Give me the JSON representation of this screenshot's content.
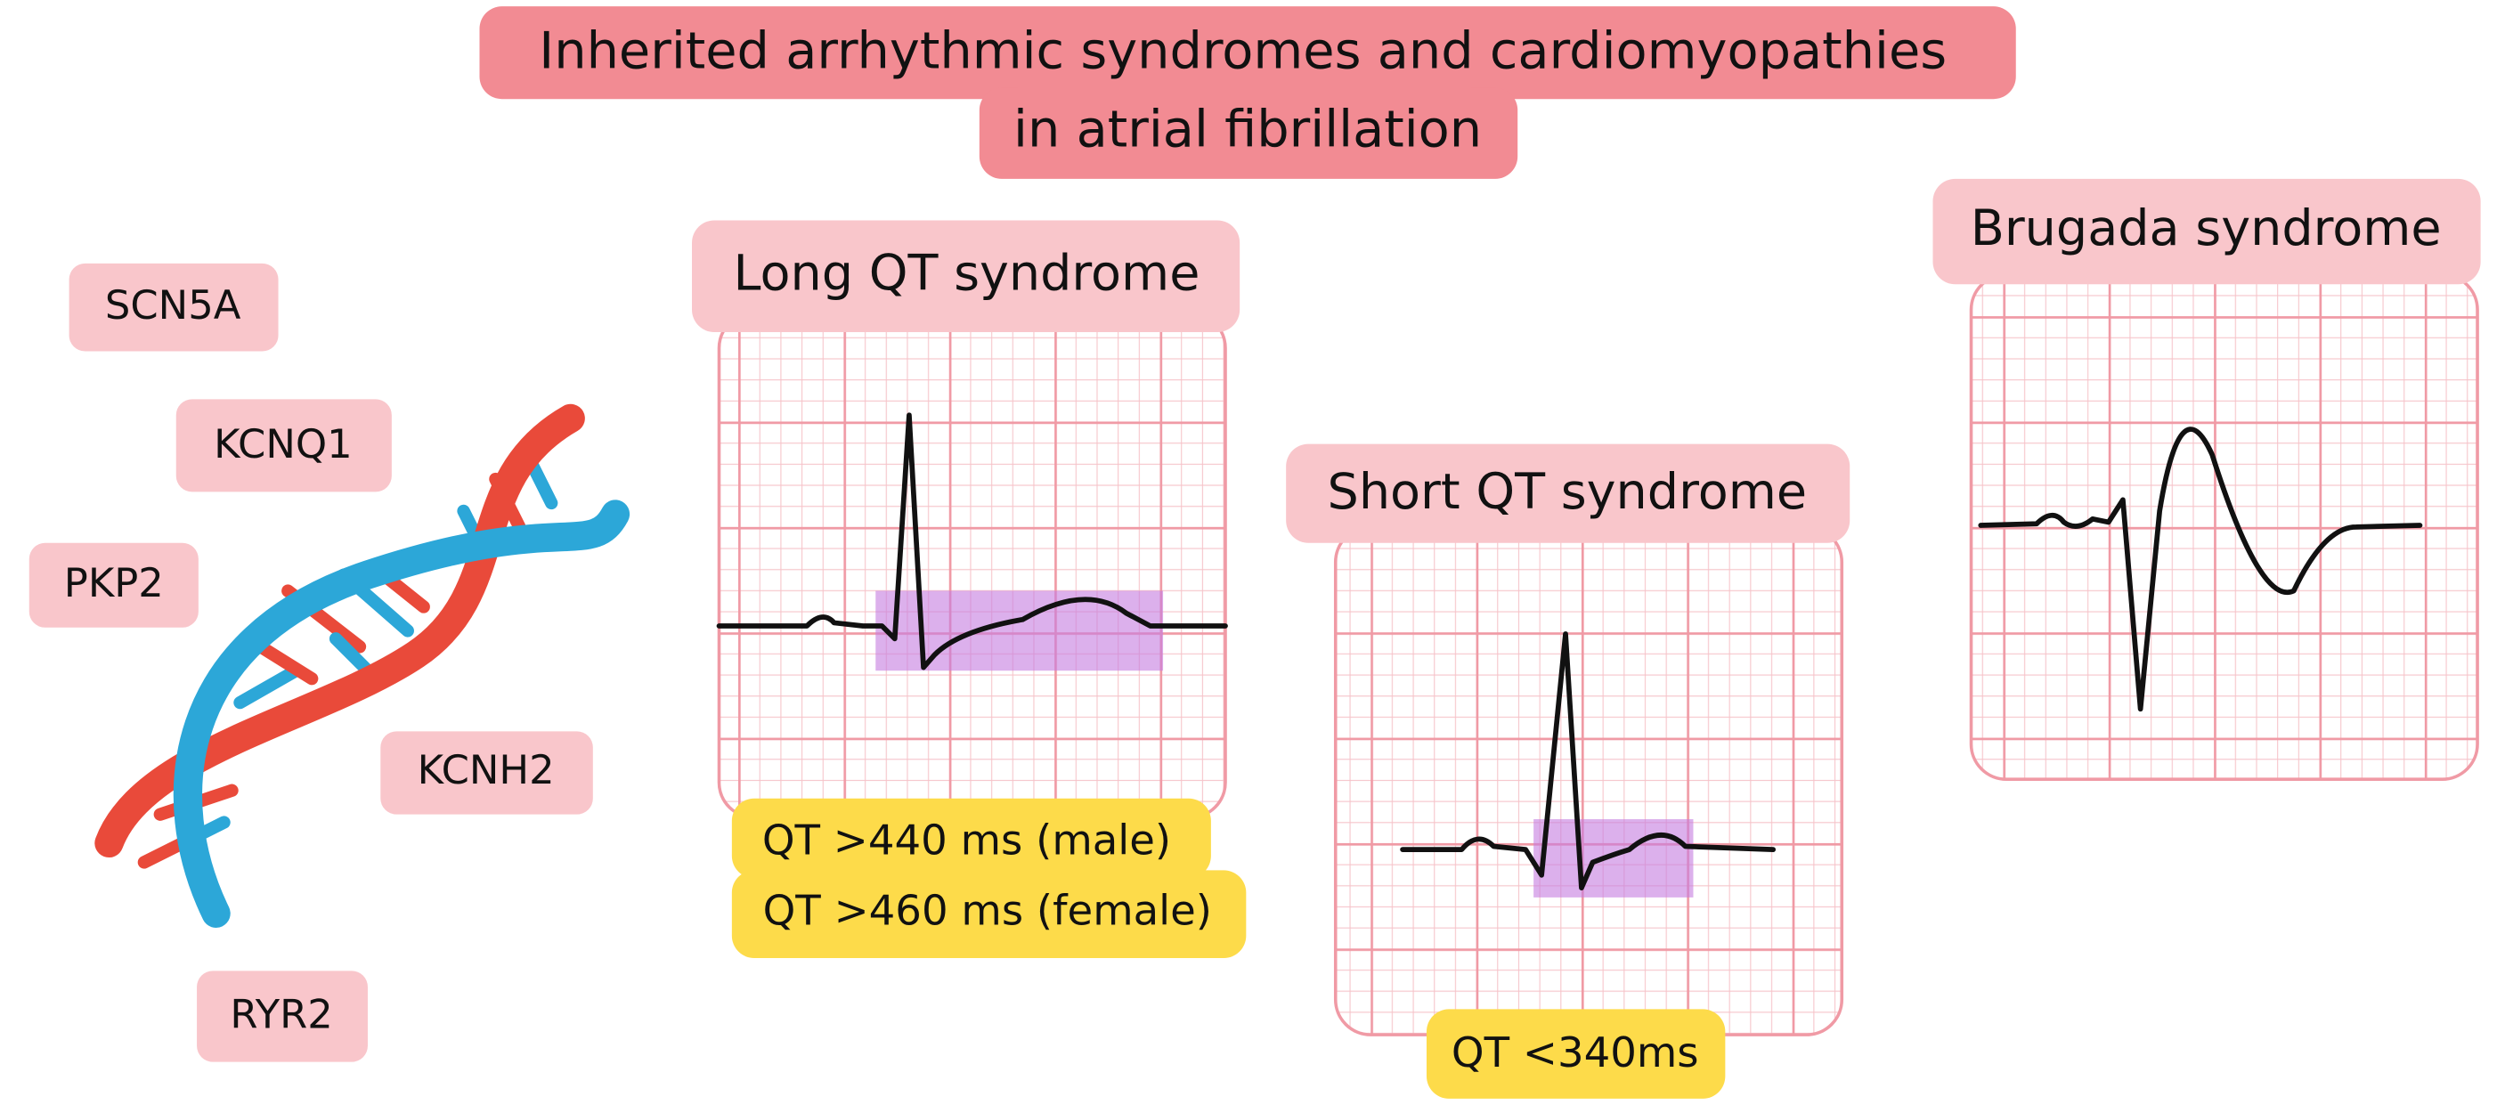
{
  "title": [
    "Inherited arrhythmic syndromes and cardiomyopathies",
    "in atrial fibrillation"
  ],
  "genes": [
    "SCN5A",
    "KCNQ1",
    "PKP2",
    "KCNH2",
    "RYR2"
  ],
  "panels": [
    {
      "label": "Long QT syndrome",
      "criteria": [
        "QT >440 ms (male)",
        "QT >460 ms (female)"
      ]
    },
    {
      "label": "Short QT syndrome",
      "criteria": [
        "QT <340ms"
      ]
    },
    {
      "label": "Brugada syndrome"
    }
  ]
}
